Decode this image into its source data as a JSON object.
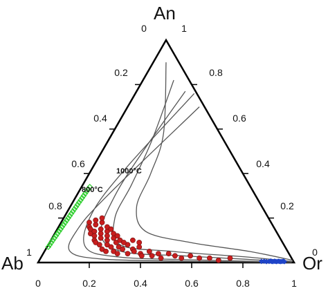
{
  "chart_data": {
    "type": "scatter",
    "subtype": "ternary",
    "vertices": {
      "top": "An",
      "left": "Ab",
      "right": "Or"
    },
    "tick_labels": {
      "an_axis_left_edge": [
        "0",
        "0.2",
        "0.4",
        "0.6",
        "0.8",
        "1"
      ],
      "or_axis_right_edge": [
        "1",
        "0.8",
        "0.6",
        "0.4",
        "0.2",
        "0"
      ],
      "bottom_axis": [
        "0",
        "0.2",
        "0.4",
        "0.6",
        "0.8",
        "1"
      ]
    },
    "isotherm_labels": [
      "1000°C",
      "800°C"
    ],
    "isotherms": [
      {
        "label": "1000°C",
        "points": [
          [
            0.05,
            0.9
          ],
          [
            0.2,
            0.58
          ],
          [
            0.24,
            0.4
          ],
          [
            0.26,
            0.25
          ],
          [
            0.35,
            0.14
          ],
          [
            0.55,
            0.09
          ],
          [
            0.8,
            0.05
          ],
          [
            0.99,
            0.01
          ]
        ]
      },
      {
        "label": "800°C",
        "points": [
          [
            0.12,
            0.82
          ],
          [
            0.17,
            0.55
          ],
          [
            0.19,
            0.35
          ],
          [
            0.2,
            0.2
          ],
          [
            0.28,
            0.08
          ],
          [
            0.5,
            0.05
          ],
          [
            0.8,
            0.025
          ],
          [
            0.99,
            0.005
          ]
        ]
      },
      {
        "label": "",
        "points": [
          [
            0.19,
            0.77
          ],
          [
            0.16,
            0.5
          ],
          [
            0.15,
            0.3
          ],
          [
            0.18,
            0.13
          ],
          [
            0.3,
            0.05
          ],
          [
            0.55,
            0.03
          ],
          [
            0.8,
            0.015
          ],
          [
            0.99,
            0.003
          ]
        ]
      },
      {
        "label": "",
        "points": [
          [
            0.23,
            0.76
          ],
          [
            0.13,
            0.42
          ],
          [
            0.1,
            0.22
          ],
          [
            0.15,
            0.07
          ],
          [
            0.3,
            0.025
          ],
          [
            0.6,
            0.012
          ],
          [
            0.99,
            0.002
          ]
        ]
      },
      {
        "label": "",
        "points": [
          [
            0.28,
            0.7
          ],
          [
            0.12,
            0.3
          ],
          [
            0.08,
            0.15
          ],
          [
            0.1,
            0.05
          ],
          [
            0.25,
            0.015
          ],
          [
            0.6,
            0.006
          ],
          [
            0.99,
            0.001
          ]
        ]
      }
    ],
    "series": [
      {
        "color": "#c81e1e",
        "marker": "circle",
        "points": [
          [
            0.11,
            0.18
          ],
          [
            0.12,
            0.16
          ],
          [
            0.13,
            0.15
          ],
          [
            0.14,
            0.13
          ],
          [
            0.14,
            0.17
          ],
          [
            0.15,
            0.14
          ],
          [
            0.16,
            0.12
          ],
          [
            0.16,
            0.18
          ],
          [
            0.17,
            0.1
          ],
          [
            0.17,
            0.15
          ],
          [
            0.18,
            0.13
          ],
          [
            0.18,
            0.09
          ],
          [
            0.19,
            0.11
          ],
          [
            0.2,
            0.14
          ],
          [
            0.2,
            0.08
          ],
          [
            0.21,
            0.12
          ],
          [
            0.22,
            0.06
          ],
          [
            0.22,
            0.1
          ],
          [
            0.23,
            0.08
          ],
          [
            0.24,
            0.11
          ],
          [
            0.24,
            0.05
          ],
          [
            0.25,
            0.07
          ],
          [
            0.26,
            0.09
          ],
          [
            0.27,
            0.05
          ],
          [
            0.28,
            0.07
          ],
          [
            0.29,
            0.04
          ],
          [
            0.3,
            0.06
          ],
          [
            0.31,
            0.08
          ],
          [
            0.33,
            0.04
          ],
          [
            0.34,
            0.06
          ],
          [
            0.35,
            0.05
          ],
          [
            0.36,
            0.07
          ],
          [
            0.38,
            0.04
          ],
          [
            0.39,
            0.03
          ],
          [
            0.41,
            0.05
          ],
          [
            0.43,
            0.03
          ],
          [
            0.45,
            0.04
          ],
          [
            0.47,
            0.02
          ],
          [
            0.49,
            0.04
          ],
          [
            0.52,
            0.03
          ],
          [
            0.55,
            0.02
          ],
          [
            0.58,
            0.03
          ],
          [
            0.62,
            0.02
          ],
          [
            0.66,
            0.02
          ],
          [
            0.7,
            0.01
          ],
          [
            0.74,
            0.02
          ],
          [
            0.19,
            0.16
          ],
          [
            0.21,
            0.15
          ],
          [
            0.23,
            0.13
          ],
          [
            0.25,
            0.12
          ],
          [
            0.27,
            0.1
          ],
          [
            0.29,
            0.09
          ],
          [
            0.32,
            0.1
          ],
          [
            0.35,
            0.09
          ],
          [
            0.15,
            0.2
          ],
          [
            0.13,
            0.19
          ]
        ]
      },
      {
        "color": "#2fcf2f",
        "marker": "open-diamond",
        "points": [
          [
            0.005,
            0.07
          ],
          [
            0.006,
            0.08
          ],
          [
            0.007,
            0.09
          ],
          [
            0.008,
            0.1
          ],
          [
            0.009,
            0.11
          ],
          [
            0.01,
            0.12
          ],
          [
            0.011,
            0.13
          ],
          [
            0.012,
            0.14
          ],
          [
            0.013,
            0.15
          ],
          [
            0.014,
            0.16
          ],
          [
            0.015,
            0.17
          ],
          [
            0.016,
            0.18
          ],
          [
            0.017,
            0.19
          ],
          [
            0.018,
            0.2
          ],
          [
            0.019,
            0.21
          ],
          [
            0.02,
            0.22
          ],
          [
            0.021,
            0.23
          ],
          [
            0.022,
            0.24
          ],
          [
            0.023,
            0.25
          ],
          [
            0.024,
            0.26
          ],
          [
            0.025,
            0.27
          ],
          [
            0.026,
            0.28
          ],
          [
            0.027,
            0.29
          ],
          [
            0.028,
            0.3
          ],
          [
            0.029,
            0.31
          ],
          [
            0.03,
            0.32
          ],
          [
            0.031,
            0.33
          ],
          [
            0.032,
            0.34
          ]
        ]
      },
      {
        "color": "#1f44c8",
        "marker": "filled-diamond",
        "points": [
          [
            0.87,
            0.005
          ],
          [
            0.88,
            0.006
          ],
          [
            0.89,
            0.004
          ],
          [
            0.9,
            0.005
          ],
          [
            0.905,
            0.007
          ],
          [
            0.91,
            0.005
          ],
          [
            0.915,
            0.004
          ],
          [
            0.92,
            0.006
          ],
          [
            0.925,
            0.005
          ],
          [
            0.93,
            0.004
          ],
          [
            0.935,
            0.006
          ],
          [
            0.94,
            0.005
          ],
          [
            0.945,
            0.004
          ],
          [
            0.95,
            0.005
          ],
          [
            0.955,
            0.006
          ],
          [
            0.96,
            0.004
          ]
        ]
      }
    ],
    "grid": false
  }
}
